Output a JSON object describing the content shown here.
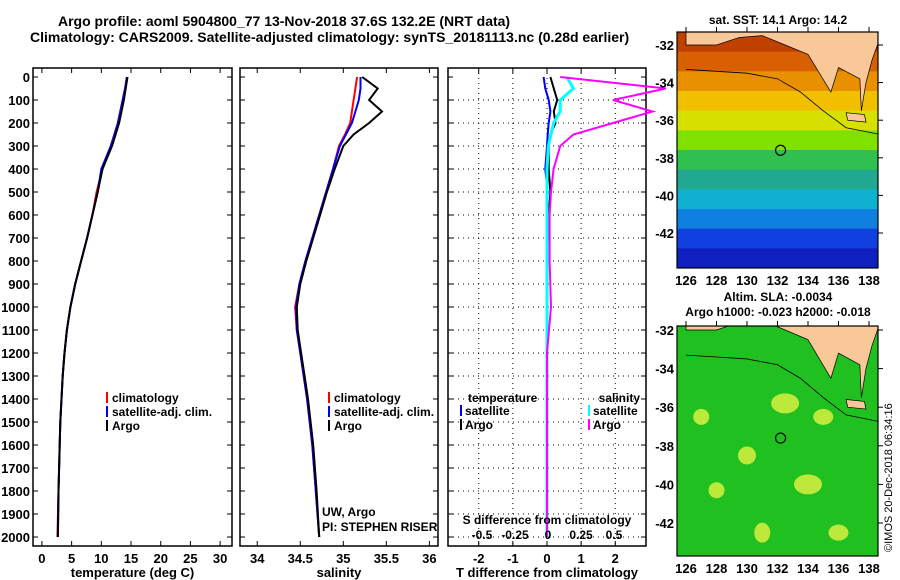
{
  "title": {
    "line1": "Argo profile: aoml 5904800_77 13-Nov-2018 37.6S 132.2E (NRT data)",
    "line2": "Climatology: CARS2009. Satellite-adjusted climatology: synTS_20181113.nc (0.28d earlier)"
  },
  "credit": "©IMOS 20-Dec-2018 06:34:16",
  "colors": {
    "clim": "#ff0000",
    "sat": "#0000ff",
    "argo": "#000000",
    "sal_sat": "#00ffff",
    "sal_argo": "#ff00ff"
  },
  "chart_data": [
    {
      "type": "line",
      "name": "temperature",
      "xlabel": "temperature (deg C)",
      "ylabel": "pressure",
      "xlim": [
        -1.5,
        32
      ],
      "ylim": [
        2040,
        -40
      ],
      "xticks": [
        0,
        5,
        10,
        15,
        20,
        25,
        30
      ],
      "yticks": [
        0,
        100,
        200,
        300,
        400,
        500,
        600,
        700,
        800,
        900,
        1000,
        1100,
        1200,
        1300,
        1400,
        1500,
        1600,
        1700,
        1800,
        1900,
        2000
      ],
      "legend": [
        "climatology",
        "satellite-adj. clim.",
        "Argo"
      ],
      "p": [
        0,
        50,
        100,
        150,
        200,
        250,
        300,
        400,
        500,
        600,
        700,
        800,
        900,
        1000,
        1100,
        1200,
        1300,
        1400,
        1500,
        1600,
        1800,
        2000
      ],
      "series": [
        {
          "name": "climatology",
          "values": [
            14.3,
            14.0,
            13.6,
            13.2,
            12.8,
            12.2,
            11.6,
            10.2,
            9.2,
            8.5,
            7.6,
            6.6,
            5.6,
            4.8,
            4.2,
            3.8,
            3.5,
            3.3,
            3.1,
            3.0,
            2.8,
            2.6
          ]
        },
        {
          "name": "satellite-adj. clim.",
          "values": [
            14.3,
            14.0,
            13.6,
            13.2,
            12.8,
            12.2,
            11.6,
            10.0,
            9.4,
            8.5,
            7.6,
            6.6,
            5.6,
            4.8,
            4.2,
            3.8,
            3.5,
            3.3,
            3.1,
            3.0,
            2.8,
            2.7
          ]
        },
        {
          "name": "Argo",
          "values": [
            14.4,
            14.1,
            13.8,
            13.4,
            13.0,
            12.4,
            11.8,
            10.2,
            9.4,
            8.5,
            7.6,
            6.6,
            5.6,
            4.8,
            4.2,
            3.8,
            3.5,
            3.3,
            3.1,
            3.0,
            2.8,
            2.7
          ]
        }
      ]
    },
    {
      "type": "line",
      "name": "salinity",
      "xlabel": "salinity",
      "xlim": [
        33.8,
        36.1
      ],
      "ylim": [
        2040,
        -40
      ],
      "xticks": [
        34,
        34.5,
        35,
        35.5,
        36
      ],
      "legend": [
        "climatology",
        "satellite-adj. clim.",
        "Argo"
      ],
      "annotation": [
        "UW, Argo",
        "PI: STEPHEN RISER"
      ],
      "p": [
        0,
        50,
        100,
        150,
        200,
        250,
        300,
        400,
        500,
        600,
        700,
        800,
        900,
        1000,
        1100,
        1200,
        1300,
        1400,
        1500,
        1600,
        1800,
        2000
      ],
      "series": [
        {
          "name": "climatology",
          "values": [
            35.16,
            35.14,
            35.12,
            35.1,
            35.08,
            35.02,
            34.95,
            34.88,
            34.8,
            34.72,
            34.64,
            34.56,
            34.49,
            34.44,
            34.46,
            34.5,
            34.54,
            34.58,
            34.61,
            34.64,
            34.68,
            34.72
          ]
        },
        {
          "name": "satellite-adj. clim.",
          "values": [
            35.2,
            35.2,
            35.18,
            35.14,
            35.1,
            35.03,
            34.96,
            34.88,
            34.8,
            34.72,
            34.64,
            34.56,
            34.49,
            34.45,
            34.46,
            34.5,
            34.54,
            34.58,
            34.61,
            34.64,
            34.68,
            34.72
          ]
        },
        {
          "name": "Argo",
          "values": [
            35.22,
            35.4,
            35.3,
            35.45,
            35.3,
            35.12,
            35.0,
            34.9,
            34.81,
            34.73,
            34.65,
            34.57,
            34.5,
            34.46,
            34.47,
            34.51,
            34.55,
            34.59,
            34.62,
            34.65,
            34.69,
            34.72
          ]
        }
      ]
    },
    {
      "type": "line",
      "name": "difference",
      "xlabel": "T difference from climatology",
      "x2label": "S difference from climatology",
      "xlim": [
        -2.9,
        2.9
      ],
      "ylim": [
        2040,
        -40
      ],
      "xticks": [
        -2,
        -1,
        0,
        1,
        2
      ],
      "x2ticks": [
        "-0.5",
        "-0.25",
        "0",
        "0.25",
        "0.5"
      ],
      "legend": {
        "temperature": "temperature",
        "salinity": "salinity",
        "items": [
          "satellite",
          "Argo",
          "satellite",
          "Argo"
        ]
      },
      "p": [
        0,
        50,
        100,
        150,
        200,
        250,
        300,
        400,
        500,
        600,
        800,
        1000,
        1200,
        1400,
        1600,
        2000
      ],
      "series": [
        {
          "name": "T satellite",
          "values": [
            -0.1,
            -0.05,
            0.05,
            0.1,
            0.05,
            0.02,
            0.0,
            -0.05,
            0.02,
            0.0,
            0.0,
            0.0,
            0.0,
            0.0,
            0.0,
            0.0
          ]
        },
        {
          "name": "T Argo",
          "values": [
            0.1,
            0.2,
            0.3,
            0.2,
            0.25,
            0.1,
            0.05,
            0.05,
            0.1,
            0.05,
            0.0,
            0.0,
            0.0,
            0.0,
            0.0,
            0.0
          ]
        },
        {
          "name": "S satellite",
          "values": [
            0.15,
            0.2,
            0.1,
            0.1,
            0.05,
            0.03,
            0.01,
            0.0,
            0.0,
            0.0,
            0.0,
            0.0,
            0.0,
            0.0,
            0.0,
            0.0
          ]
        },
        {
          "name": "S Argo",
          "values": [
            0.1,
            0.9,
            0.5,
            0.8,
            0.5,
            0.2,
            0.1,
            0.05,
            0.03,
            0.02,
            0.02,
            0.03,
            0.0,
            0.0,
            0.0,
            0.0
          ]
        }
      ]
    }
  ],
  "maps": [
    {
      "title": "sat. SST: 14.1 Argo: 14.2",
      "lat_ticks": [
        "-32",
        "-34",
        "-36",
        "-38",
        "-40",
        "-42"
      ],
      "lon_ticks": [
        "126",
        "128",
        "130",
        "132",
        "134",
        "136",
        "138"
      ],
      "marker": {
        "lon": 132.2,
        "lat": -37.6
      }
    },
    {
      "title1": "Altim. SLA: -0.0034",
      "title2": "Argo h1000: -0.023 h2000: -0.018",
      "lat_ticks": [
        "-32",
        "-34",
        "-36",
        "-38",
        "-40",
        "-42"
      ],
      "lon_ticks": [
        "126",
        "128",
        "130",
        "132",
        "134",
        "136",
        "138"
      ],
      "marker": {
        "lon": 132.2,
        "lat": -37.6
      }
    }
  ]
}
